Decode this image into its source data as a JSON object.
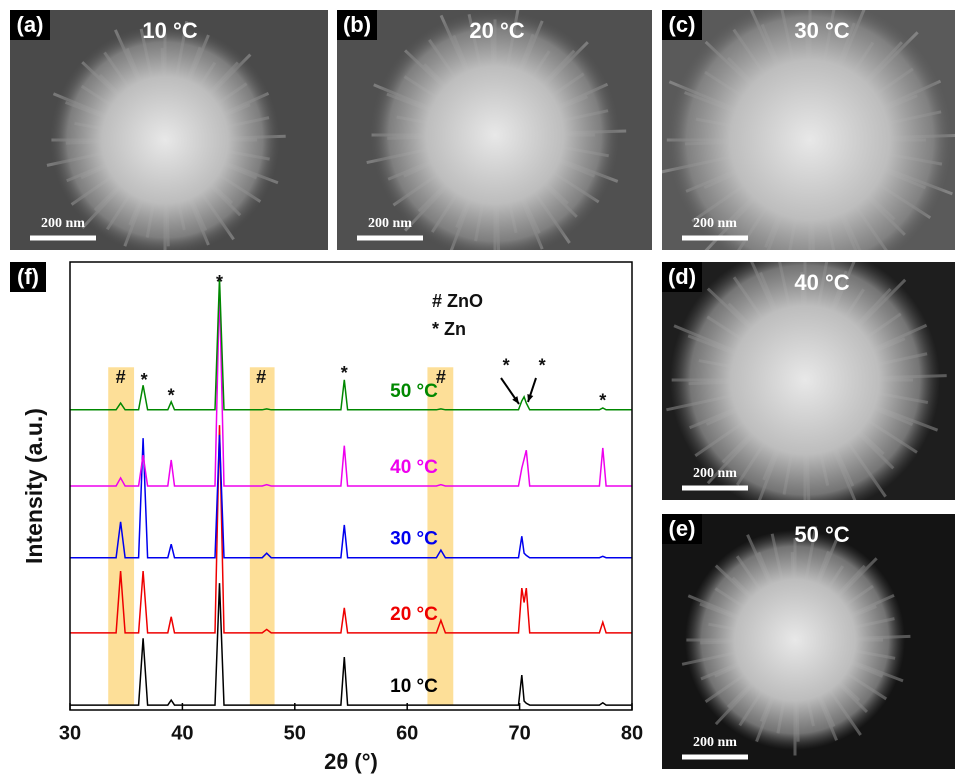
{
  "panels": [
    {
      "label": "(a)",
      "temperature": "10 °C",
      "scale": "200 nm"
    },
    {
      "label": "(b)",
      "temperature": "20 °C",
      "scale": "200 nm"
    },
    {
      "label": "(c)",
      "temperature": "30 °C",
      "scale": "200 nm"
    },
    {
      "label": "(d)",
      "temperature": "40 °C",
      "scale": "200 nm"
    },
    {
      "label": "(e)",
      "temperature": "50 °C",
      "scale": "200 nm"
    }
  ],
  "chart_data": {
    "type": "line",
    "panel_label": "(f)",
    "x_label": "2θ (°)",
    "y_label": "Intensity (a.u.)",
    "xlim": [
      30,
      80
    ],
    "xticks": [
      30,
      40,
      50,
      60,
      70,
      80
    ],
    "ylim": [
      0,
      100
    ],
    "legend_text": [
      "# ZnO",
      "* Zn"
    ],
    "bands": [
      [
        33.4,
        35.7
      ],
      [
        46,
        48.2
      ],
      [
        61.8,
        64.1
      ]
    ],
    "band_color": "#fcd77e",
    "annotations": [
      {
        "text": "#",
        "x": 34.5,
        "y": 74
      },
      {
        "text": "*",
        "x": 36.6,
        "y": 73.4
      },
      {
        "text": "*",
        "x": 39,
        "y": 69.9
      },
      {
        "text": "*",
        "x": 43.3,
        "y": 95.3
      },
      {
        "text": "#",
        "x": 47,
        "y": 74
      },
      {
        "text": "*",
        "x": 54.4,
        "y": 75
      },
      {
        "text": "#",
        "x": 63,
        "y": 74
      },
      {
        "text": "*",
        "x": 68.8,
        "y": 76.6
      },
      {
        "text": "*",
        "x": 72,
        "y": 76.6
      },
      {
        "text": "*",
        "x": 77.4,
        "y": 68.8
      }
    ],
    "x": [
      30,
      34.1,
      34.5,
      34.9,
      36.1,
      36.5,
      36.9,
      38.7,
      39,
      39.3,
      42.9,
      43.3,
      43.7,
      47.1,
      47.5,
      47.9,
      54.1,
      54.4,
      54.7,
      62.6,
      63,
      63.4,
      69.9,
      70.2,
      70.4,
      70.6,
      70.9,
      77.1,
      77.4,
      77.7,
      80
    ],
    "series": [
      {
        "name": "10 °C",
        "color": "#000000",
        "values": [
          1.1,
          1.1,
          1.1,
          1.1,
          1.1,
          16,
          1.1,
          1.1,
          2.2,
          1.1,
          1.1,
          28.3,
          1.1,
          1.1,
          1.1,
          1.1,
          1.1,
          11.8,
          1.1,
          1.1,
          1.1,
          1.1,
          1.1,
          7.8,
          2,
          1.5,
          1.1,
          1.1,
          1.6,
          1.1,
          1.1
        ]
      },
      {
        "name": "20 °C",
        "color": "#ee0000",
        "values": [
          17.2,
          17.2,
          31,
          17.2,
          17.2,
          31,
          17.2,
          17.2,
          20.8,
          17.2,
          17.2,
          63.6,
          17.2,
          17.2,
          18,
          17.2,
          17.2,
          22.8,
          17.2,
          17.2,
          20,
          17.2,
          17.2,
          27.2,
          24,
          27.2,
          17.2,
          17.2,
          19.6,
          17.2,
          17.2
        ]
      },
      {
        "name": "30 °C",
        "color": "#0000ee",
        "values": [
          34,
          34,
          42,
          34,
          34,
          60.7,
          34,
          34,
          37,
          34,
          34,
          61.4,
          34,
          34,
          35,
          34,
          34,
          41.3,
          34,
          34,
          35.7,
          34,
          34,
          38.8,
          35,
          34.5,
          34,
          34,
          34.3,
          34,
          34
        ]
      },
      {
        "name": "40 °C",
        "color": "#ee00ee",
        "values": [
          50,
          50,
          51.8,
          50,
          50,
          56.9,
          50,
          50,
          55.8,
          50,
          50,
          94.2,
          50,
          50,
          50.3,
          50,
          50,
          59,
          50,
          50,
          50.3,
          50,
          50,
          54,
          56,
          58,
          50,
          50,
          58.5,
          50,
          50
        ]
      },
      {
        "name": "50 °C",
        "color": "#008800",
        "values": [
          67,
          67,
          68.5,
          67,
          67,
          72.5,
          67,
          67,
          68.8,
          67,
          67,
          96.4,
          67,
          67,
          67.2,
          67,
          67,
          73.7,
          67,
          67,
          67.2,
          67,
          67,
          69,
          69.9,
          68.5,
          67,
          67,
          67.4,
          67,
          67
        ]
      }
    ]
  }
}
